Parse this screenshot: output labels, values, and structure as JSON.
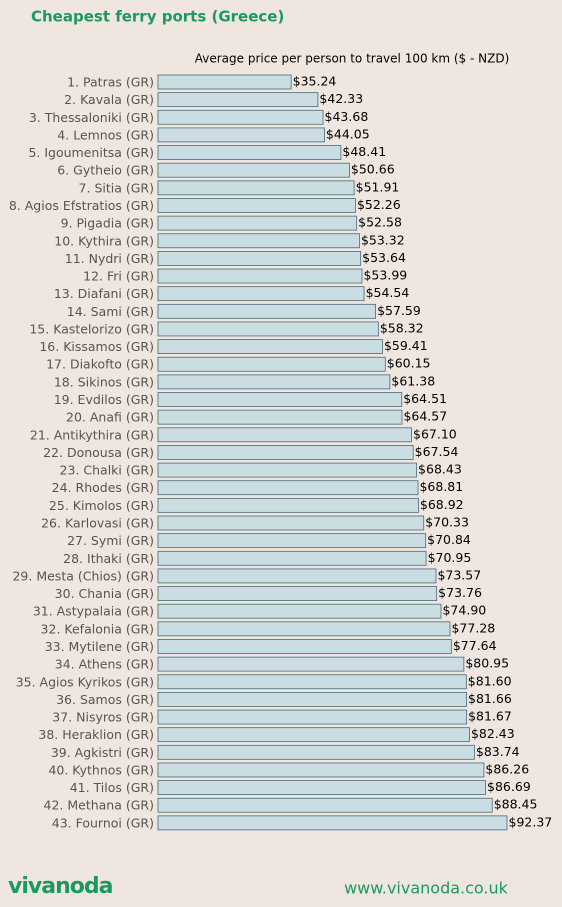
{
  "chart_data": {
    "type": "barh",
    "title": "Cheapest ferry ports (Greece)",
    "subtitle": "Average price per person to travel 100 km ($ - NZD)",
    "categories": [
      "1. Patras (GR)",
      "2. Kavala (GR)",
      "3. Thessaloniki (GR)",
      "4. Lemnos (GR)",
      "5. Igoumenitsa (GR)",
      "6. Gytheio (GR)",
      "7. Sitia (GR)",
      "8. Agios Efstratios (GR)",
      "9. Pigadia (GR)",
      "10. Kythira (GR)",
      "11. Nydri (GR)",
      "12. Fri (GR)",
      "13. Diafani (GR)",
      "14. Sami (GR)",
      "15. Kastelorizo (GR)",
      "16. Kissamos (GR)",
      "17. Diakofto (GR)",
      "18. Sikinos (GR)",
      "19. Evdilos (GR)",
      "20. Anafi (GR)",
      "21. Antikythira (GR)",
      "22. Donousa (GR)",
      "23. Chalki (GR)",
      "24. Rhodes (GR)",
      "25. Kimolos (GR)",
      "26. Karlovasi (GR)",
      "27. Symi (GR)",
      "28. Ithaki (GR)",
      "29. Mesta (Chios) (GR)",
      "30. Chania (GR)",
      "31. Astypalaia (GR)",
      "32. Kefalonia (GR)",
      "33. Mytilene (GR)",
      "34. Athens (GR)",
      "35. Agios Kyrikos (GR)",
      "36. Samos (GR)",
      "37. Nisyros (GR)",
      "38. Heraklion (GR)",
      "39. Agkistri (GR)",
      "40. Kythnos (GR)",
      "41. Tilos (GR)",
      "42. Methana (GR)",
      "43. Fournoi (GR)"
    ],
    "values": [
      35.24,
      42.33,
      43.68,
      44.05,
      48.41,
      50.66,
      51.91,
      52.26,
      52.58,
      53.32,
      53.64,
      53.99,
      54.54,
      57.59,
      58.32,
      59.41,
      60.15,
      61.38,
      64.51,
      64.57,
      67.1,
      67.54,
      68.43,
      68.81,
      68.92,
      70.33,
      70.84,
      70.95,
      73.57,
      73.76,
      74.9,
      77.28,
      77.64,
      80.95,
      81.6,
      81.66,
      81.67,
      82.43,
      83.74,
      86.26,
      86.69,
      88.45,
      92.37
    ],
    "value_labels": [
      "$35.24",
      "$42.33",
      "$43.68",
      "$44.05",
      "$48.41",
      "$50.66",
      "$51.91",
      "$52.26",
      "$52.58",
      "$53.32",
      "$53.64",
      "$53.99",
      "$54.54",
      "$57.59",
      "$58.32",
      "$59.41",
      "$60.15",
      "$61.38",
      "$64.51",
      "$64.57",
      "$67.10",
      "$67.54",
      "$68.43",
      "$68.81",
      "$68.92",
      "$70.33",
      "$70.84",
      "$70.95",
      "$73.57",
      "$73.76",
      "$74.90",
      "$77.28",
      "$77.64",
      "$80.95",
      "$81.60",
      "$81.66",
      "$81.67",
      "$82.43",
      "$83.74",
      "$86.26",
      "$86.69",
      "$88.45",
      "$92.37"
    ],
    "color": "#cadde3"
  },
  "footer": {
    "logo": "vivanoda",
    "url": "www.vivanoda.co.uk"
  }
}
